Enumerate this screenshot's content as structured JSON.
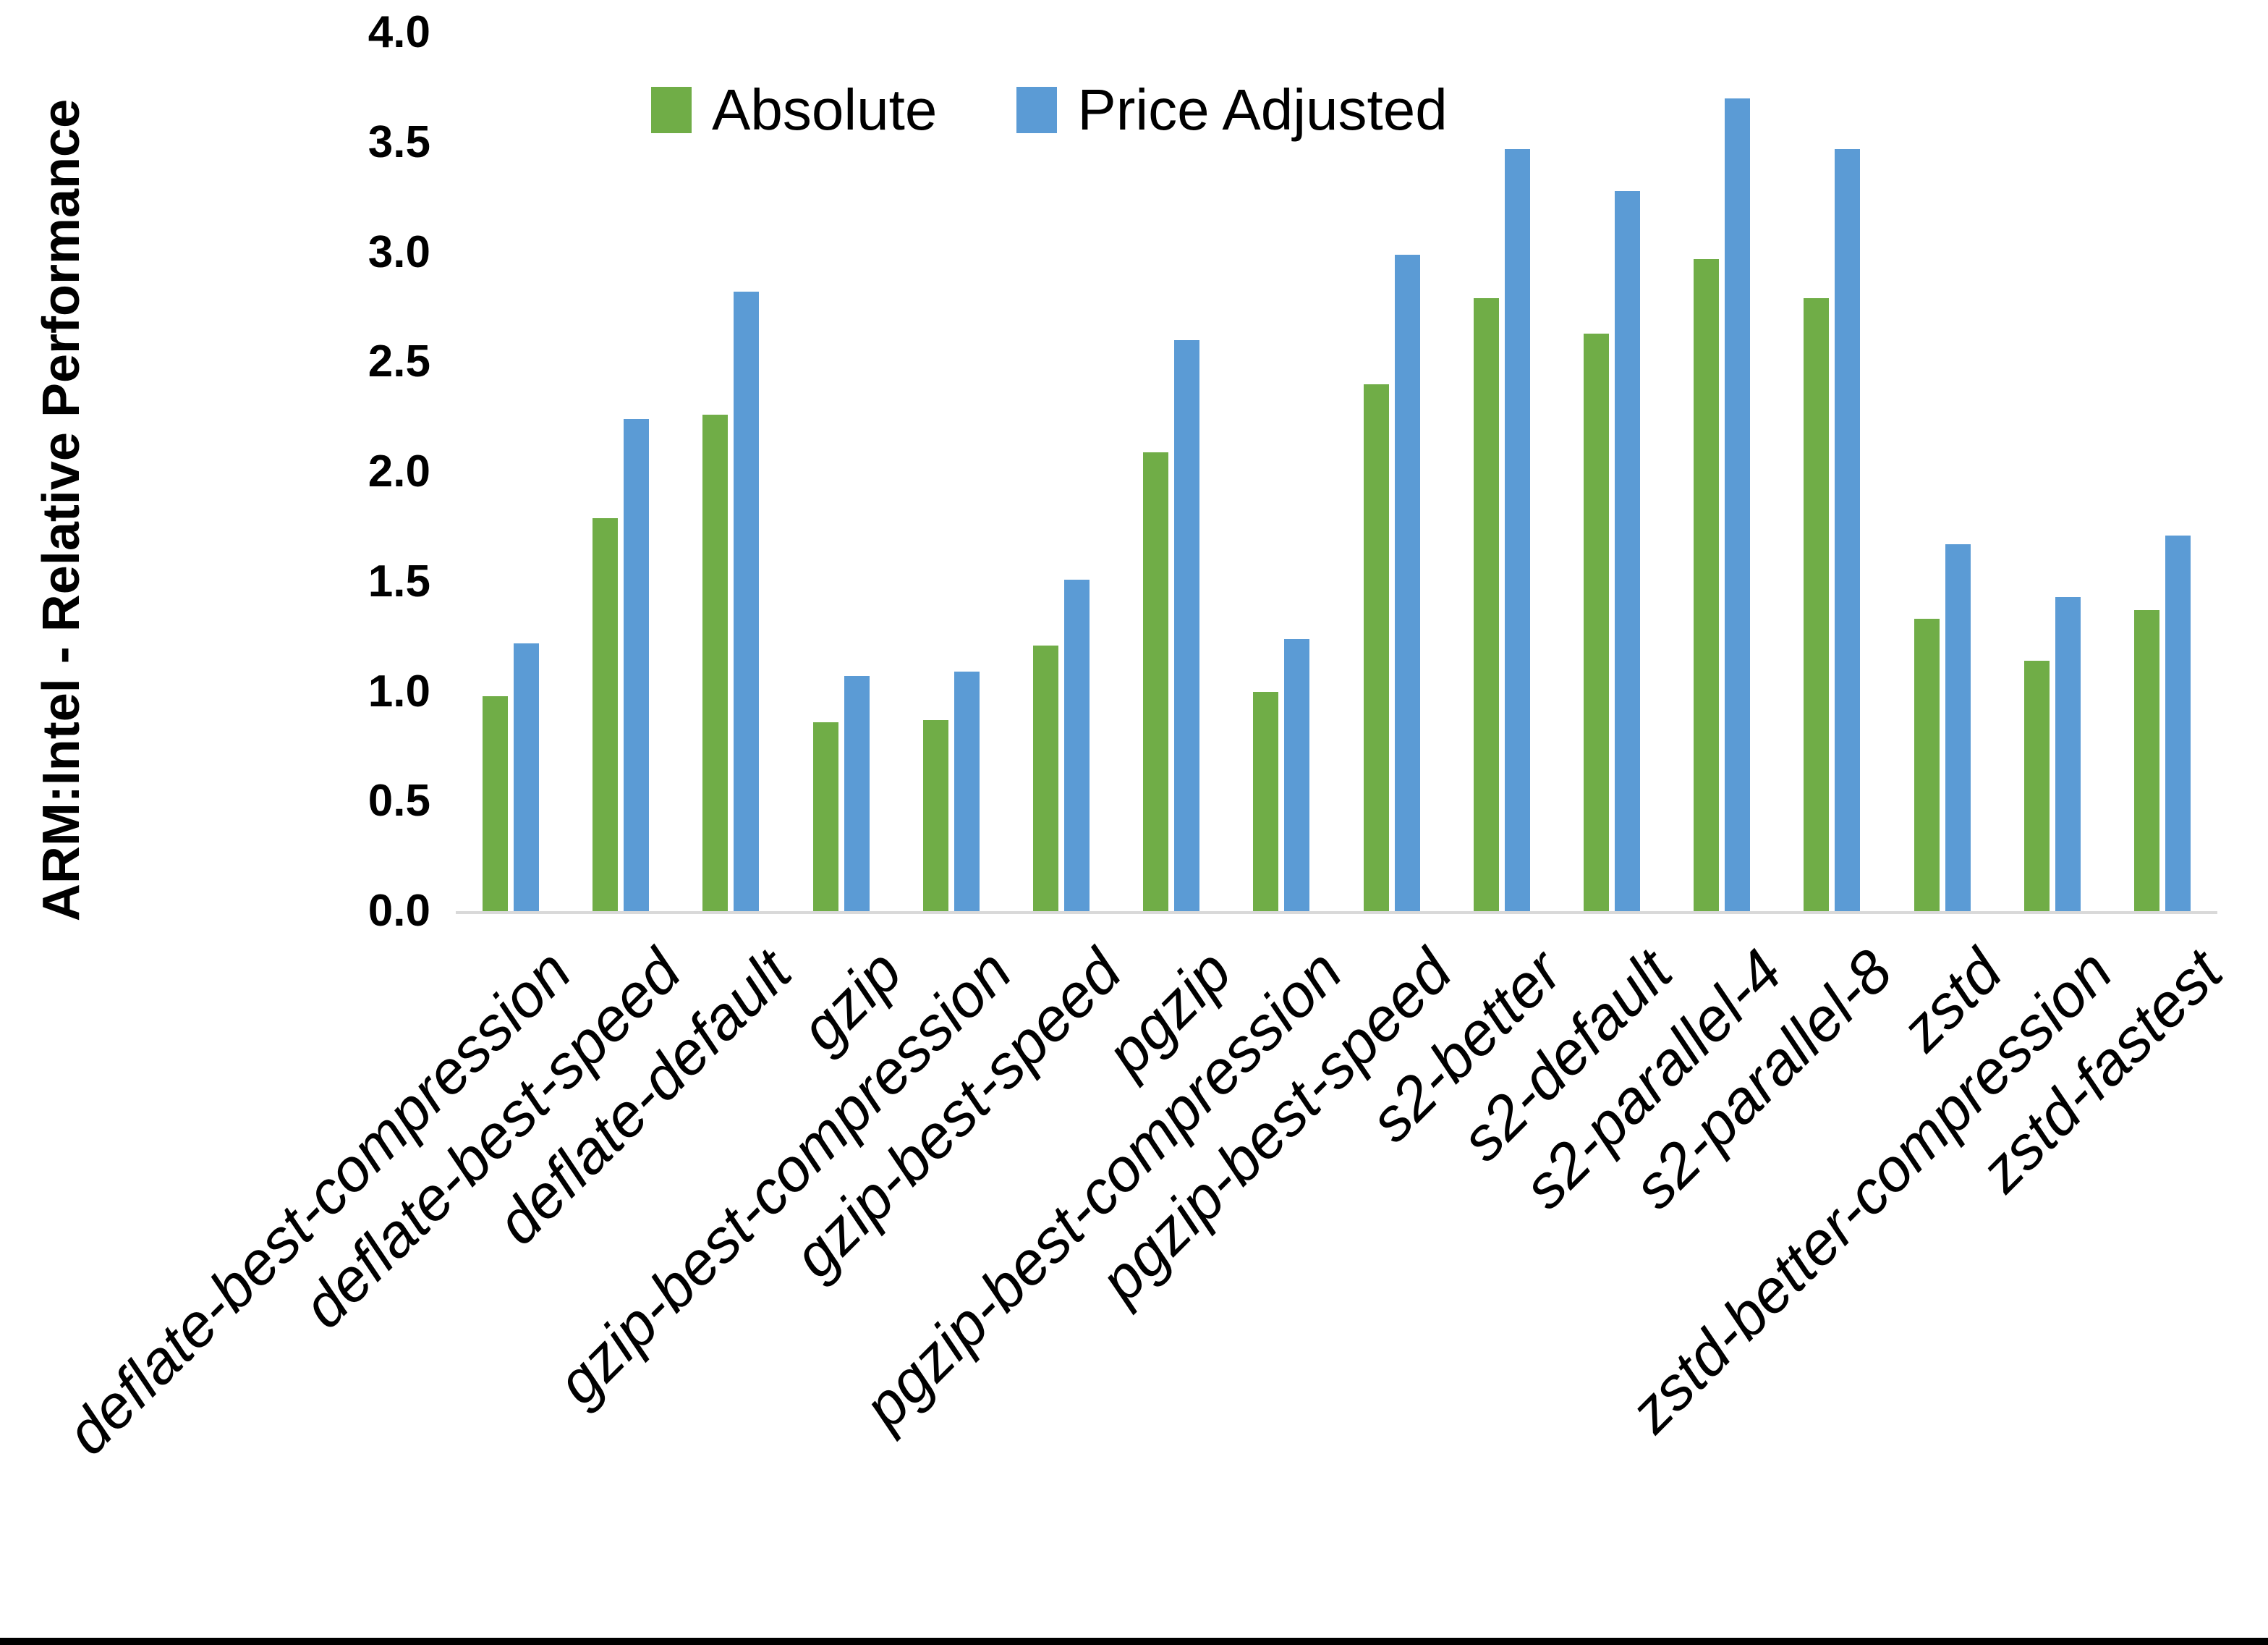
{
  "chart_data": {
    "type": "bar",
    "title": "",
    "xlabel": "",
    "ylabel": "ARM:Intel - Relative Performance",
    "ylim": [
      0.0,
      4.0
    ],
    "ytick_step": 0.5,
    "yticks": [
      "0.0",
      "0.5",
      "1.0",
      "1.5",
      "2.0",
      "2.5",
      "3.0",
      "3.5",
      "4.0"
    ],
    "grid": false,
    "legend_position": "top-center",
    "background_color": "#ffffff",
    "axis_line_color": "#d9d9d9",
    "categories": [
      "deflate-best-compression",
      "deflate-best-speed",
      "deflate-default",
      "gzip",
      "gzip-best-compression",
      "gzip-best-speed",
      "pgzip",
      "pgzip-best-compression",
      "pgzip-best-speed",
      "s2-better",
      "s2-default",
      "s2-parallel-4",
      "s2-parallel-8",
      "zstd",
      "zstd-better-compression",
      "zstd-fastest"
    ],
    "series": [
      {
        "name": "Absolute",
        "color": "#70AD47",
        "values": [
          0.98,
          1.79,
          2.26,
          0.86,
          0.87,
          1.21,
          2.09,
          1.0,
          2.4,
          2.79,
          2.63,
          2.97,
          2.79,
          1.33,
          1.14,
          1.37
        ]
      },
      {
        "name": "Price Adjusted",
        "color": "#5B9BD5",
        "values": [
          1.22,
          2.24,
          2.82,
          1.07,
          1.09,
          1.51,
          2.6,
          1.24,
          2.99,
          3.47,
          3.28,
          3.7,
          3.47,
          1.67,
          1.43,
          1.71
        ]
      }
    ]
  }
}
